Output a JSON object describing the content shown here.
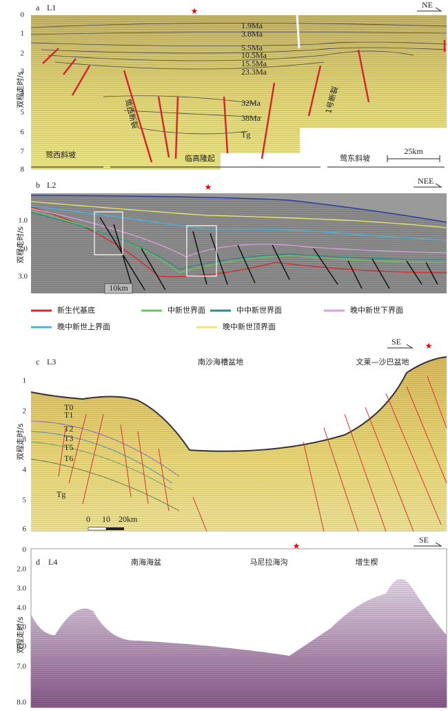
{
  "panels": [
    {
      "label": "a",
      "name": "L1",
      "direction": "NE",
      "axis_label": "双程走时/s",
      "yticks": [
        "0",
        "1",
        "2",
        "3",
        "4",
        "5",
        "6",
        "7",
        "8"
      ],
      "ages": [
        "1.9Ma",
        "3.8Ma",
        "5.5Ma",
        "10.5Ma",
        "15.5Ma",
        "23.3Ma",
        "32Ma",
        "38Ma",
        "Tg"
      ],
      "faults": [
        "莺西断裂",
        "1号断裂"
      ],
      "regions": [
        "莺西斜坡",
        "临高隆起",
        "莺东斜坡"
      ],
      "scale": "25km"
    },
    {
      "label": "b",
      "name": "L2",
      "direction": "NEE",
      "axis_label": "双程走时/s",
      "yticks": [
        "1.0",
        "2.0",
        "3.0"
      ],
      "scale": "10km",
      "legend": [
        {
          "name": "新生代基底",
          "color": "#d7262b"
        },
        {
          "name": "中新世界面",
          "color": "#6ec55a"
        },
        {
          "name": "中中新世界面",
          "color": "#2b8a8a"
        },
        {
          "name": "晚中新世下界面",
          "color": "#d9a0d9"
        },
        {
          "name": "晚中新世上界面",
          "color": "#46b6e0"
        },
        {
          "name": "晚中新世顶界面",
          "color": "#eeea6a"
        }
      ]
    },
    {
      "label": "c",
      "name": "L3",
      "direction": "SE",
      "axis_label": "双程走时/s",
      "yticks": [
        "1",
        "2",
        "3",
        "4",
        "5",
        "6"
      ],
      "regions": [
        "南沙海槽盆地",
        "文莱—沙巴盆地"
      ],
      "horizons": [
        "T0",
        "T1",
        "T2",
        "T3",
        "T5",
        "T6",
        "Tg"
      ],
      "scale": [
        "0",
        "10",
        "20km"
      ]
    },
    {
      "label": "d",
      "name": "L4",
      "direction": "SE",
      "axis_label": "双程走时/s",
      "yticks": [
        "0",
        "2.0",
        "3.0",
        "4.0",
        "5.0",
        "6.0",
        "7.0",
        "8.0"
      ],
      "regions": [
        "南海海盆",
        "马尼拉海沟",
        "增生楔"
      ]
    }
  ]
}
